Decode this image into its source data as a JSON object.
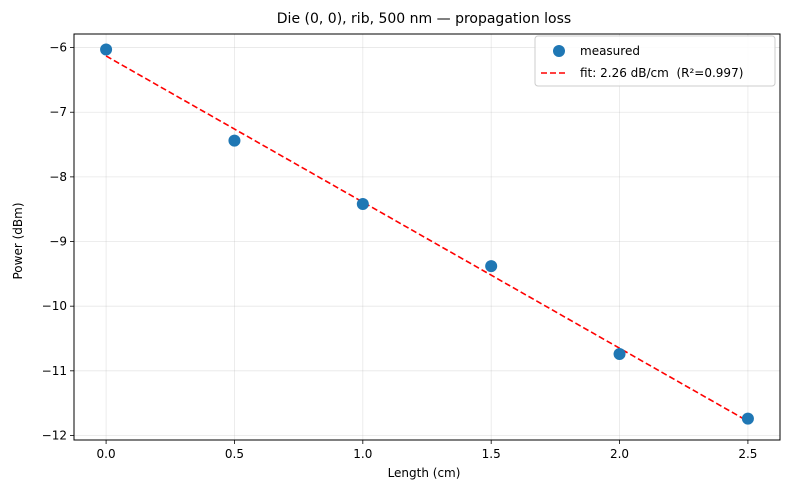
{
  "chart_data": {
    "type": "scatter",
    "title": "Die (0, 0), rib, 500 nm — propagation loss",
    "xlabel": "Length (cm)",
    "ylabel": "Power (dBm)",
    "xlim": [
      -0.125,
      2.625
    ],
    "ylim": [
      -12.07,
      -5.79
    ],
    "xticks": [
      0.0,
      0.5,
      1.0,
      1.5,
      2.0,
      2.5
    ],
    "xtick_labels": [
      "0.0",
      "0.5",
      "1.0",
      "1.5",
      "2.0",
      "2.5"
    ],
    "yticks": [
      -12,
      -11,
      -10,
      -9,
      -8,
      -7,
      -6
    ],
    "ytick_labels": [
      "−12",
      "−11",
      "−10",
      "−9",
      "−8",
      "−7",
      "−6"
    ],
    "grid": true,
    "legend_position": "top-right",
    "series": [
      {
        "name": "measured",
        "kind": "scatter",
        "color": "#1f77b4",
        "x": [
          0.0,
          0.5,
          1.0,
          1.5,
          2.0,
          2.5
        ],
        "y": [
          -6.03,
          -7.44,
          -8.42,
          -9.38,
          -10.74,
          -11.74
        ]
      },
      {
        "name": "fit: 2.26 dB/cm  (R²=0.997)",
        "kind": "line",
        "style": "dashed",
        "color": "#ff0000",
        "x": [
          0.0,
          2.5
        ],
        "y": [
          -6.13,
          -11.78
        ]
      }
    ]
  }
}
